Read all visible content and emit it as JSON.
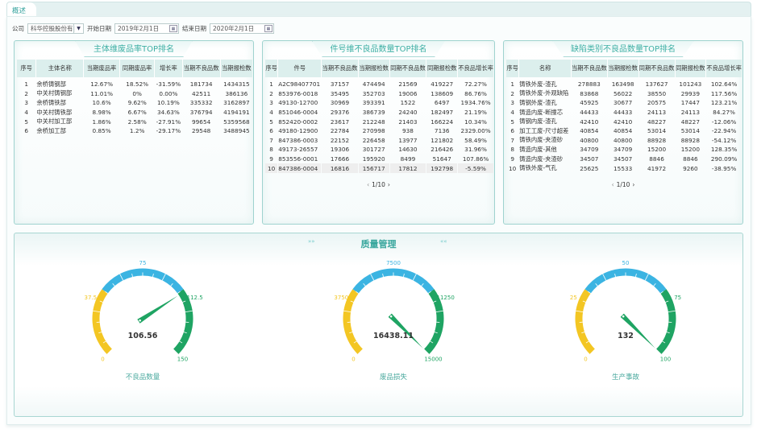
{
  "tab": {
    "label": "概述"
  },
  "filters": {
    "company_label": "公司",
    "company_value": "科华控股股份有|",
    "start_label": "开始日期",
    "start_value": "2019年2月1日",
    "end_label": "结束日期",
    "end_value": "2020年2月1日"
  },
  "panel1": {
    "title": "主体维废品率TOP排名",
    "columns": [
      "序号",
      "主体名称",
      "当期废品率",
      "同期废品率",
      "增长率",
      "当期不良品数",
      "当期报检数"
    ],
    "rows": [
      [
        "1",
        "余桥铸钢部",
        "12.67%",
        "18.52%",
        "-31.59%",
        "181734",
        "1434315"
      ],
      [
        "2",
        "中关村铸钢部",
        "11.01%",
        "0%",
        "0.00%",
        "42511",
        "386136"
      ],
      [
        "3",
        "余桥铸铁部",
        "10.6%",
        "9.62%",
        "10.19%",
        "335332",
        "3162897"
      ],
      [
        "4",
        "中关村铸铁部",
        "8.98%",
        "6.67%",
        "34.63%",
        "376794",
        "4194191"
      ],
      [
        "5",
        "中关村加工部",
        "1.86%",
        "2.58%",
        "-27.91%",
        "99654",
        "5359568"
      ],
      [
        "6",
        "余桥加工部",
        "0.85%",
        "1.2%",
        "-29.17%",
        "29548",
        "3488945"
      ]
    ]
  },
  "panel2": {
    "title": "件号维不良品数量TOP排名",
    "columns": [
      "序号",
      "件号",
      "当期不良品数",
      "当期报检数",
      "同期不良品数",
      "同期报检数",
      "不良品增长率"
    ],
    "rows": [
      [
        "1",
        "A2C98407701",
        "37157",
        "474494",
        "21569",
        "419227",
        "72.27%"
      ],
      [
        "2",
        "853976-0018",
        "35495",
        "352703",
        "19006",
        "138609",
        "86.76%"
      ],
      [
        "3",
        "49130-12700",
        "30969",
        "393391",
        "1522",
        "6497",
        "1934.76%"
      ],
      [
        "4",
        "851046-0004",
        "29376",
        "386739",
        "24240",
        "182497",
        "21.19%"
      ],
      [
        "5",
        "852420-0002",
        "23617",
        "212248",
        "21403",
        "166224",
        "10.34%"
      ],
      [
        "6",
        "49180-12900",
        "22784",
        "270998",
        "938",
        "7136",
        "2329.00%"
      ],
      [
        "7",
        "847386-0003",
        "22152",
        "226458",
        "13977",
        "121802",
        "58.49%"
      ],
      [
        "8",
        "49173-26557",
        "19306",
        "301727",
        "14630",
        "216426",
        "31.96%"
      ],
      [
        "9",
        "853556-0001",
        "17666",
        "195920",
        "8499",
        "51647",
        "107.86%"
      ],
      [
        "10",
        "847386-0004",
        "16816",
        "156717",
        "17812",
        "192798",
        "-5.59%"
      ]
    ],
    "page": "1/10"
  },
  "panel3": {
    "title": "缺陷类别不良品数量TOP排名",
    "columns": [
      "序号",
      "名称",
      "当期不良品数",
      "当期报检数",
      "同期不良品数",
      "同期报检数",
      "不良品增长率"
    ],
    "rows": [
      [
        "1",
        "铸铁外废-渣孔",
        "278883",
        "163498",
        "137627",
        "101243",
        "102.64%"
      ],
      [
        "2",
        "铸铁外废-外观缺陷",
        "83868",
        "56022",
        "38550",
        "29939",
        "117.56%"
      ],
      [
        "3",
        "铸钢外废-渣孔",
        "45925",
        "30677",
        "20575",
        "17447",
        "123.21%"
      ],
      [
        "4",
        "铸造内废-断撞芯",
        "44433",
        "44433",
        "24113",
        "24113",
        "84.27%"
      ],
      [
        "5",
        "铸钢内废-渣孔",
        "42410",
        "42410",
        "48227",
        "48227",
        "-12.06%"
      ],
      [
        "6",
        "加工工废-尺寸超差",
        "40854",
        "40854",
        "53014",
        "53014",
        "-22.94%"
      ],
      [
        "7",
        "铸铁内废-夹渣砂",
        "40800",
        "40800",
        "88928",
        "88928",
        "-54.12%"
      ],
      [
        "8",
        "铸造内废-其他",
        "34709",
        "34709",
        "15200",
        "15200",
        "128.35%"
      ],
      [
        "9",
        "铸造内废-夹渣砂",
        "34507",
        "34507",
        "8846",
        "8846",
        "290.09%"
      ],
      [
        "10",
        "铸铁外废-气孔",
        "25625",
        "15533",
        "41972",
        "9260",
        "-38.95%"
      ]
    ],
    "page": "1/10"
  },
  "quality": {
    "title": "质量管理",
    "chev_left": "»»",
    "chev_right": "««",
    "colors": {
      "low": "#f3c623",
      "mid": "#3bb4e2",
      "high": "#1fa463",
      "needle": "#1fa463"
    },
    "gauges": [
      {
        "label": "不良品数量",
        "min": 0,
        "max": 150,
        "value": 106.56,
        "display": "106.56",
        "ticks": [
          "0",
          "37.5",
          "75",
          "112.5",
          "150"
        ]
      },
      {
        "label": "废品损失",
        "min": 0,
        "max": 15000,
        "value": 16438.11,
        "display": "16438.11",
        "ticks": [
          "0",
          "3750",
          "7500",
          "11250",
          "15000"
        ]
      },
      {
        "label": "生产事故",
        "min": 0,
        "max": 100,
        "value": 132,
        "display": "132",
        "ticks": [
          "0",
          "25",
          "50",
          "75",
          "100"
        ]
      }
    ]
  }
}
